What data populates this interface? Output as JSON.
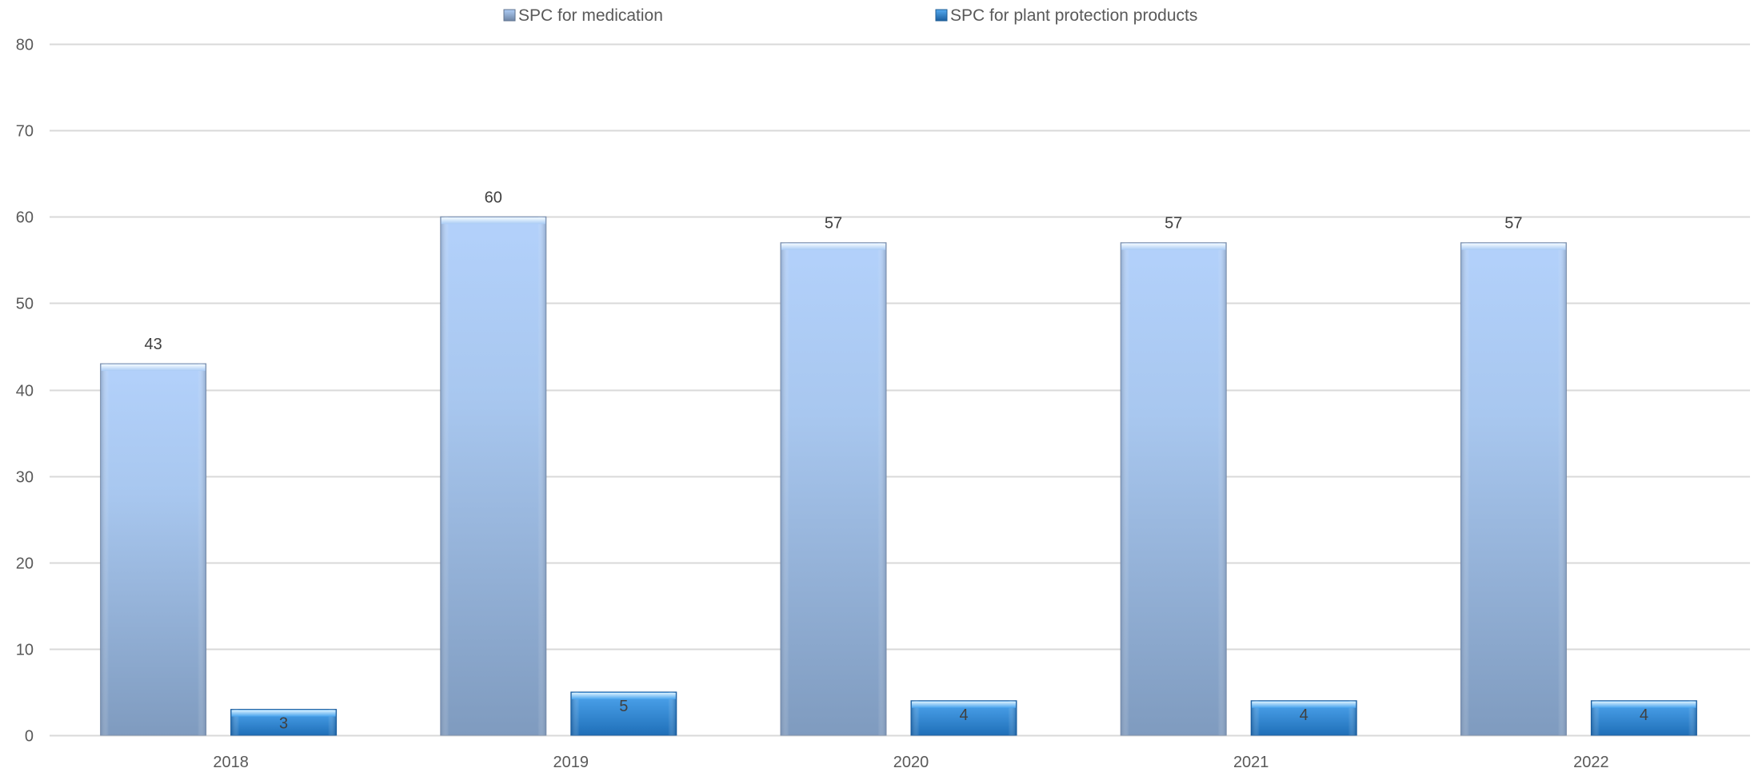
{
  "chart_data": {
    "type": "bar",
    "categories": [
      "2018",
      "2019",
      "2020",
      "2021",
      "2022"
    ],
    "series": [
      {
        "name": "SPC for medication",
        "values": [
          43,
          60,
          57,
          57,
          57
        ],
        "color": "#9fbbe3"
      },
      {
        "name": "SPC for plant protection products",
        "values": [
          3,
          5,
          4,
          4,
          4
        ],
        "color": "#2f88d6"
      }
    ],
    "ylim": [
      0,
      80
    ],
    "yticks": [
      "0",
      "10",
      "20",
      "30",
      "40",
      "50",
      "60",
      "70",
      "80"
    ],
    "grid": true,
    "legend_position": "top"
  }
}
